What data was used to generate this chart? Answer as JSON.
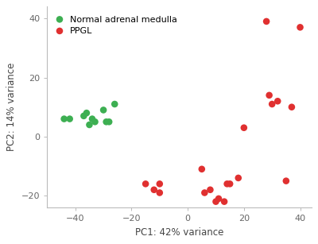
{
  "green_x": [
    -44,
    -42,
    -37,
    -36,
    -35,
    -34,
    -33,
    -30,
    -29,
    -28,
    -26
  ],
  "green_y": [
    6,
    6,
    7,
    8,
    4,
    6,
    5,
    9,
    5,
    5,
    11
  ],
  "red_x": [
    -15,
    -12,
    -10,
    -10,
    5,
    6,
    8,
    10,
    11,
    13,
    14,
    15,
    18,
    20,
    28,
    29,
    30,
    32,
    35,
    37,
    40
  ],
  "red_y": [
    -16,
    -18,
    -16,
    -19,
    -11,
    -19,
    -18,
    -22,
    -21,
    -22,
    -16,
    -16,
    -14,
    3,
    39,
    14,
    11,
    12,
    -15,
    10,
    37
  ],
  "green_color": "#3daf52",
  "red_color": "#e03030",
  "xlabel": "PC1: 42% variance",
  "ylabel": "PC2: 14% variance",
  "legend_green": "Normal adrenal medulla",
  "legend_red": "PPGL",
  "xlim": [
    -50,
    44
  ],
  "ylim": [
    -24,
    44
  ],
  "xticks": [
    -40,
    -20,
    0,
    20,
    40
  ],
  "yticks": [
    -20,
    0,
    20,
    40
  ],
  "marker_size": 38,
  "background_color": "#ffffff"
}
